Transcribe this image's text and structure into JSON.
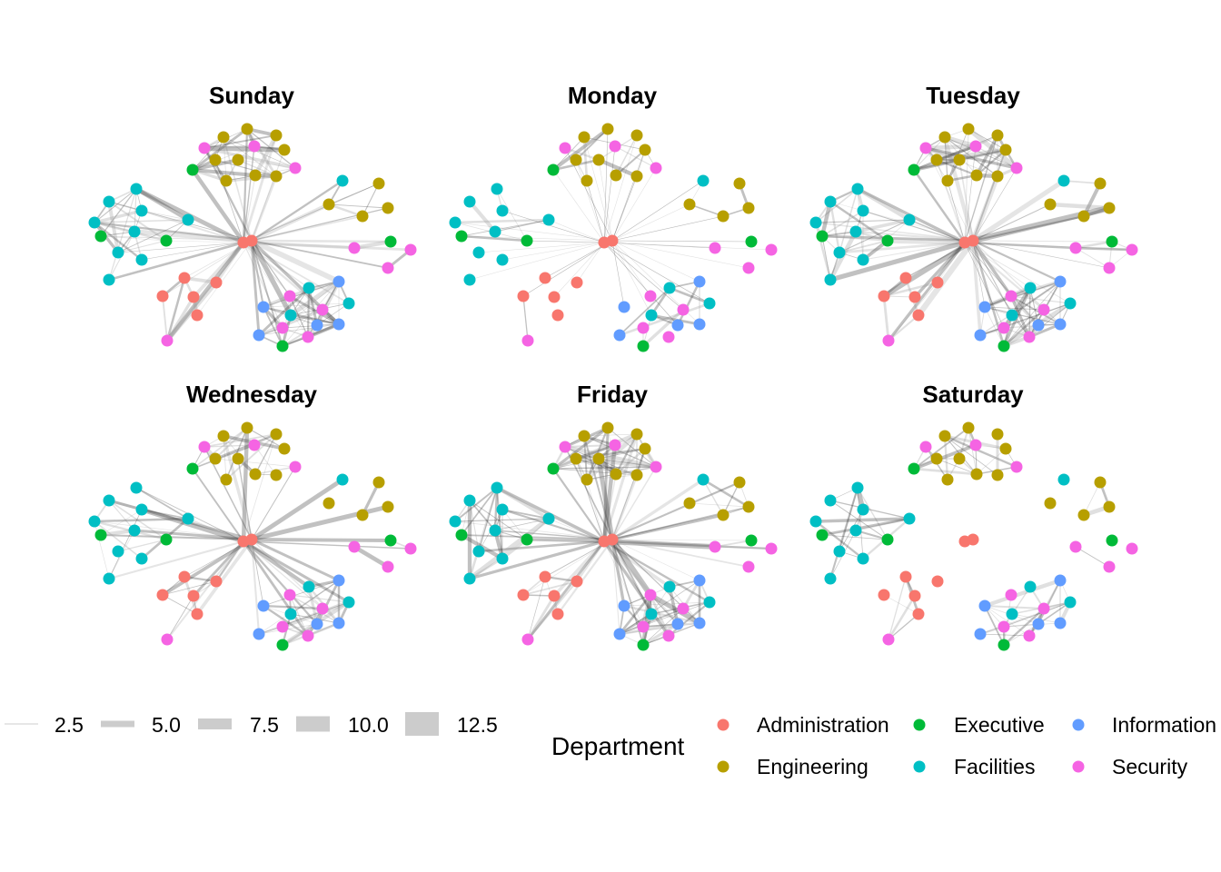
{
  "facets": [
    {
      "title": "Sunday",
      "hub_edges": "dense",
      "cluster_edges": "dense"
    },
    {
      "title": "Monday",
      "hub_edges": "thin",
      "cluster_edges": "sparse"
    },
    {
      "title": "Tuesday",
      "hub_edges": "dense",
      "cluster_edges": "dense"
    },
    {
      "title": "Wednesday",
      "hub_edges": "medium",
      "cluster_edges": "medium"
    },
    {
      "title": "Friday",
      "hub_edges": "dense",
      "cluster_edges": "dense"
    },
    {
      "title": "Saturday",
      "hub_edges": "none",
      "cluster_edges": "medium"
    }
  ],
  "legend_width": {
    "entries": [
      "2.5",
      "5.0",
      "7.5",
      "10.0",
      "12.5"
    ],
    "color": "#cccccc"
  },
  "legend_department": {
    "title": "Department",
    "entries": [
      {
        "label": "Administration",
        "color": "#F8766D"
      },
      {
        "label": "Engineering",
        "color": "#B79F00"
      },
      {
        "label": "Executive",
        "color": "#00BA38"
      },
      {
        "label": "Facilities",
        "color": "#00BFC4"
      },
      {
        "label": "Information",
        "color": "#619CFF"
      },
      {
        "label": "Security",
        "color": "#F564E3"
      }
    ]
  },
  "chart_data": {
    "type": "network",
    "node_color_by": "Department",
    "edge_width_legend": [
      2.5,
      5.0,
      7.5,
      10.0,
      12.5
    ],
    "facets": [
      "Sunday",
      "Monday",
      "Tuesday",
      "Wednesday",
      "Friday",
      "Saturday"
    ]
  }
}
